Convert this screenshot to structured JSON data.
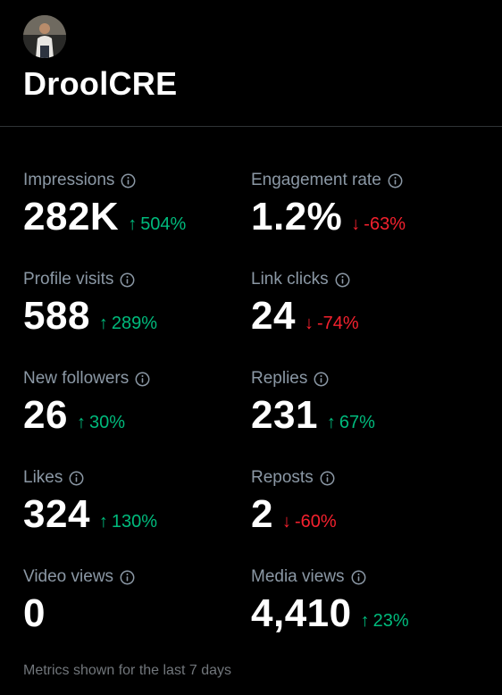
{
  "profile": {
    "username": "DroolCRE"
  },
  "metrics": [
    {
      "label": "Impressions",
      "value": "282K",
      "arrow": "↑",
      "change": "504%",
      "direction": "up"
    },
    {
      "label": "Engagement rate",
      "value": "1.2%",
      "arrow": "↓",
      "change": "-63%",
      "direction": "down"
    },
    {
      "label": "Profile visits",
      "value": "588",
      "arrow": "↑",
      "change": "289%",
      "direction": "up"
    },
    {
      "label": "Link clicks",
      "value": "24",
      "arrow": "↓",
      "change": "-74%",
      "direction": "down"
    },
    {
      "label": "New followers",
      "value": "26",
      "arrow": "↑",
      "change": "30%",
      "direction": "up"
    },
    {
      "label": "Replies",
      "value": "231",
      "arrow": "↑",
      "change": "67%",
      "direction": "up"
    },
    {
      "label": "Likes",
      "value": "324",
      "arrow": "↑",
      "change": "130%",
      "direction": "up"
    },
    {
      "label": "Reposts",
      "value": "2",
      "arrow": "↓",
      "change": "-60%",
      "direction": "down"
    },
    {
      "label": "Video views",
      "value": "0"
    },
    {
      "label": "Media views",
      "value": "4,410",
      "arrow": "↑",
      "change": "23%",
      "direction": "up"
    }
  ],
  "footer": {
    "note": "Metrics shown for the last 7 days"
  },
  "colors": {
    "background": "#000000",
    "positive": "#00ba7c",
    "negative": "#f4212e",
    "label": "#8b98a5"
  }
}
